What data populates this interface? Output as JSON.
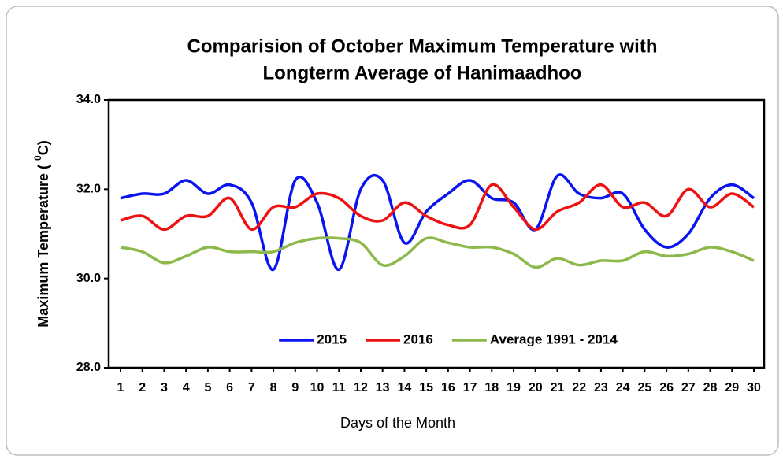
{
  "chart_data": {
    "type": "line",
    "title": [
      "Comparision of October Maximum Temperature with",
      "Longterm Average of Hanimaadhoo"
    ],
    "x_label": "Days of the Month",
    "y_label": {
      "text": "Maximum Temperature ( ",
      "sup": "0",
      "unit": "C)"
    },
    "categories": [
      1,
      2,
      3,
      4,
      5,
      6,
      7,
      8,
      9,
      10,
      11,
      12,
      13,
      14,
      15,
      16,
      17,
      18,
      19,
      20,
      21,
      22,
      23,
      24,
      25,
      26,
      27,
      28,
      29,
      30
    ],
    "series": [
      {
        "name": "2015",
        "color": "#0a14f0",
        "values": [
          31.8,
          31.9,
          31.9,
          32.2,
          31.9,
          32.1,
          31.7,
          30.2,
          32.2,
          31.7,
          30.2,
          32.0,
          32.2,
          30.8,
          31.5,
          31.9,
          32.2,
          31.8,
          31.7,
          31.1,
          32.3,
          31.9,
          31.8,
          31.9,
          31.1,
          30.7,
          31.0,
          31.8,
          32.1,
          31.8
        ]
      },
      {
        "name": "2016",
        "color": "#ee1111",
        "values": [
          31.3,
          31.4,
          31.1,
          31.4,
          31.4,
          31.8,
          31.1,
          31.6,
          31.6,
          31.9,
          31.8,
          31.4,
          31.3,
          31.7,
          31.4,
          31.2,
          31.2,
          32.1,
          31.6,
          31.1,
          31.5,
          31.7,
          32.1,
          31.6,
          31.7,
          31.4,
          32.0,
          31.6,
          31.9,
          31.6
        ]
      },
      {
        "name": "Average 1991 - 2014",
        "color": "#8db84a",
        "values": [
          30.7,
          30.6,
          30.35,
          30.5,
          30.7,
          30.6,
          30.6,
          30.6,
          30.8,
          30.9,
          30.9,
          30.8,
          30.3,
          30.5,
          30.9,
          30.8,
          30.7,
          30.7,
          30.55,
          30.25,
          30.45,
          30.3,
          30.4,
          30.4,
          30.6,
          30.5,
          30.55,
          30.7,
          30.6,
          30.4
        ]
      }
    ],
    "ylim": [
      28,
      34
    ],
    "yticks": [
      {
        "value": 28,
        "label": "28.0"
      },
      {
        "value": 30,
        "label": "30.0"
      },
      {
        "value": 32,
        "label": "32.0"
      },
      {
        "value": 34,
        "label": "34.0"
      }
    ],
    "smooth": true,
    "legend": "lower center"
  }
}
